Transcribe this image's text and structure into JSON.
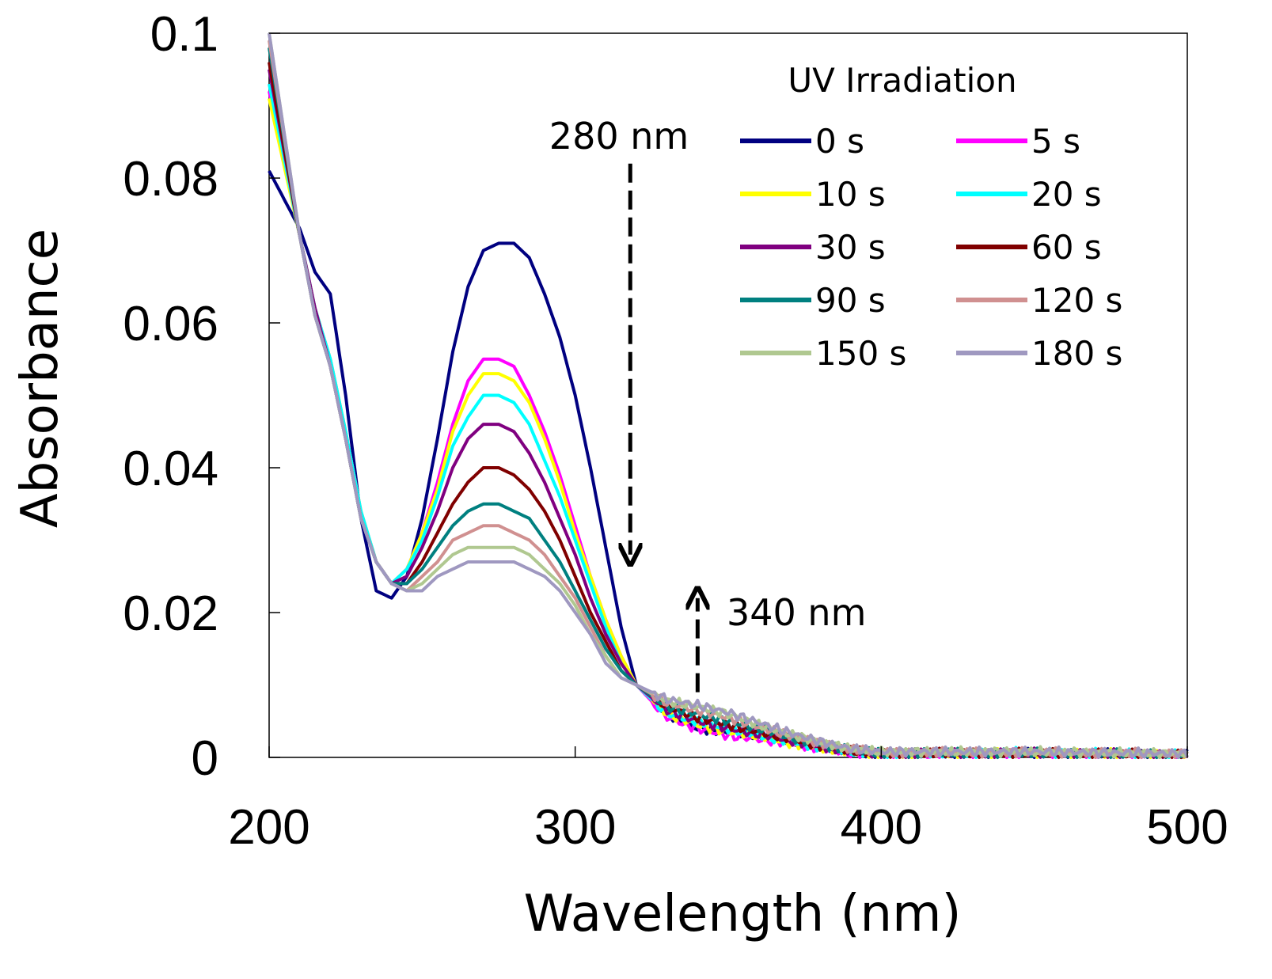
{
  "chart_data": {
    "type": "line",
    "xlabel": "Wavelength (nm)",
    "ylabel": "Absorbance",
    "xlim": [
      200,
      500
    ],
    "ylim": [
      0,
      0.1
    ],
    "xticks": [
      "200",
      "300",
      "400",
      "500"
    ],
    "yticks": [
      "0",
      "0.02",
      "0.04",
      "0.06",
      "0.08",
      "0.1"
    ],
    "xtick_values": [
      200,
      300,
      400,
      500
    ],
    "ytick_values": [
      0,
      0.02,
      0.04,
      0.06,
      0.08,
      0.1
    ],
    "grid": false,
    "legend_title": "UV Irradiation",
    "legend_position": "top-right",
    "x": [
      200,
      210,
      215,
      220,
      225,
      230,
      235,
      240,
      245,
      250,
      255,
      260,
      265,
      270,
      275,
      280,
      285,
      290,
      295,
      300,
      305,
      310,
      315,
      320,
      330,
      340,
      350,
      360,
      370,
      380,
      390,
      400,
      450,
      500
    ],
    "series": [
      {
        "name": "0 s",
        "color": "#000080",
        "values": [
          0.081,
          0.073,
          0.067,
          0.064,
          0.05,
          0.033,
          0.023,
          0.022,
          0.025,
          0.033,
          0.044,
          0.056,
          0.065,
          0.07,
          0.071,
          0.071,
          0.069,
          0.064,
          0.058,
          0.05,
          0.04,
          0.029,
          0.018,
          0.01,
          0.006,
          0.004,
          0.0035,
          0.003,
          0.0025,
          0.0015,
          0.0008,
          0.0005,
          0.0006,
          0.0004
        ]
      },
      {
        "name": "5 s",
        "color": "#FF00FF",
        "values": [
          0.092,
          0.072,
          0.062,
          0.055,
          0.045,
          0.034,
          0.027,
          0.024,
          0.026,
          0.031,
          0.038,
          0.046,
          0.052,
          0.055,
          0.055,
          0.054,
          0.05,
          0.045,
          0.039,
          0.032,
          0.025,
          0.019,
          0.014,
          0.01,
          0.0055,
          0.004,
          0.003,
          0.0025,
          0.002,
          0.0012,
          0.0006,
          0.0004,
          0.0005,
          0.0003
        ]
      },
      {
        "name": "10 s",
        "color": "#FFFF00",
        "values": [
          0.091,
          0.072,
          0.062,
          0.055,
          0.045,
          0.034,
          0.027,
          0.024,
          0.026,
          0.031,
          0.037,
          0.045,
          0.05,
          0.053,
          0.053,
          0.052,
          0.049,
          0.044,
          0.038,
          0.031,
          0.025,
          0.019,
          0.014,
          0.01,
          0.006,
          0.0045,
          0.0035,
          0.003,
          0.002,
          0.0013,
          0.0007,
          0.0005,
          0.0006,
          0.0004
        ]
      },
      {
        "name": "20 s",
        "color": "#00FFFF",
        "values": [
          0.093,
          0.072,
          0.062,
          0.055,
          0.045,
          0.034,
          0.027,
          0.024,
          0.026,
          0.03,
          0.036,
          0.043,
          0.047,
          0.05,
          0.05,
          0.049,
          0.046,
          0.041,
          0.036,
          0.03,
          0.024,
          0.018,
          0.013,
          0.01,
          0.006,
          0.005,
          0.004,
          0.003,
          0.0022,
          0.0014,
          0.0008,
          0.0005,
          0.0007,
          0.0004
        ]
      },
      {
        "name": "30 s",
        "color": "#800080",
        "values": [
          0.095,
          0.072,
          0.062,
          0.054,
          0.044,
          0.033,
          0.027,
          0.024,
          0.025,
          0.029,
          0.034,
          0.04,
          0.044,
          0.046,
          0.046,
          0.045,
          0.042,
          0.038,
          0.033,
          0.028,
          0.022,
          0.017,
          0.013,
          0.01,
          0.0065,
          0.005,
          0.004,
          0.0032,
          0.0024,
          0.0015,
          0.0008,
          0.0005,
          0.0006,
          0.0004
        ]
      },
      {
        "name": "60 s",
        "color": "#800000",
        "values": [
          0.096,
          0.072,
          0.061,
          0.054,
          0.044,
          0.033,
          0.027,
          0.024,
          0.024,
          0.027,
          0.031,
          0.035,
          0.038,
          0.04,
          0.04,
          0.039,
          0.037,
          0.034,
          0.03,
          0.025,
          0.02,
          0.016,
          0.012,
          0.01,
          0.007,
          0.0055,
          0.0045,
          0.0035,
          0.0026,
          0.0016,
          0.0009,
          0.0006,
          0.0006,
          0.0004
        ]
      },
      {
        "name": "90 s",
        "color": "#008080",
        "values": [
          0.098,
          0.072,
          0.061,
          0.054,
          0.044,
          0.033,
          0.027,
          0.024,
          0.024,
          0.026,
          0.029,
          0.032,
          0.034,
          0.035,
          0.035,
          0.034,
          0.033,
          0.03,
          0.027,
          0.023,
          0.019,
          0.015,
          0.012,
          0.01,
          0.007,
          0.006,
          0.005,
          0.004,
          0.0028,
          0.0018,
          0.001,
          0.0006,
          0.0006,
          0.0004
        ]
      },
      {
        "name": "120 s",
        "color": "#D09090",
        "values": [
          0.099,
          0.072,
          0.061,
          0.054,
          0.044,
          0.033,
          0.027,
          0.024,
          0.023,
          0.025,
          0.027,
          0.03,
          0.031,
          0.032,
          0.032,
          0.031,
          0.03,
          0.028,
          0.025,
          0.022,
          0.018,
          0.014,
          0.011,
          0.01,
          0.0075,
          0.0065,
          0.0055,
          0.0042,
          0.003,
          0.002,
          0.0011,
          0.0007,
          0.0007,
          0.0005
        ]
      },
      {
        "name": "150 s",
        "color": "#B0C890",
        "values": [
          0.1,
          0.072,
          0.061,
          0.054,
          0.044,
          0.033,
          0.027,
          0.024,
          0.023,
          0.024,
          0.026,
          0.028,
          0.029,
          0.029,
          0.029,
          0.029,
          0.028,
          0.026,
          0.024,
          0.021,
          0.017,
          0.014,
          0.011,
          0.01,
          0.0078,
          0.007,
          0.006,
          0.0045,
          0.0032,
          0.0021,
          0.0012,
          0.0008,
          0.0008,
          0.0005
        ]
      },
      {
        "name": "180 s",
        "color": "#9F98C0",
        "values": [
          0.1,
          0.072,
          0.061,
          0.054,
          0.044,
          0.033,
          0.027,
          0.024,
          0.023,
          0.023,
          0.025,
          0.026,
          0.027,
          0.027,
          0.027,
          0.027,
          0.026,
          0.025,
          0.023,
          0.02,
          0.017,
          0.013,
          0.011,
          0.01,
          0.008,
          0.0072,
          0.0062,
          0.0048,
          0.0034,
          0.0022,
          0.0012,
          0.0008,
          0.0008,
          0.0005
        ]
      }
    ],
    "annotations": [
      {
        "text": "280 nm",
        "x": 318,
        "y_from": 0.082,
        "y_to": 0.028,
        "direction": "down"
      },
      {
        "text": "340 nm",
        "x": 340,
        "y_from": 0.009,
        "y_to": 0.022,
        "direction": "up"
      }
    ]
  }
}
